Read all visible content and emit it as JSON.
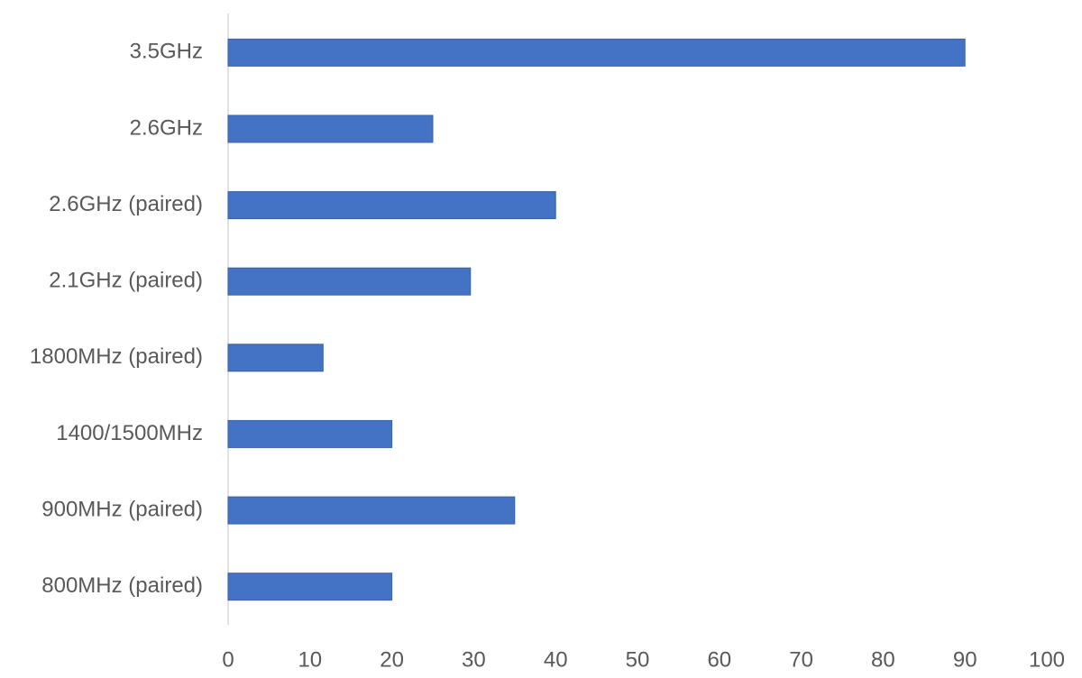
{
  "chart_data": {
    "type": "hbar",
    "categories": [
      "3.5GHz",
      "2.6GHz",
      "2.6GHz (paired)",
      "2.1GHz (paired)",
      "1800MHz (paired)",
      "1400/1500MHz",
      "900MHz (paired)",
      "800MHz (paired)"
    ],
    "values": [
      90,
      25,
      40,
      29.6,
      11.6,
      20,
      35,
      20
    ],
    "color": "#4472c4",
    "xlim": [
      0,
      100
    ],
    "xticks": [
      0,
      10,
      20,
      30,
      40,
      50,
      60,
      70,
      80,
      90,
      100
    ],
    "grid": false
  }
}
